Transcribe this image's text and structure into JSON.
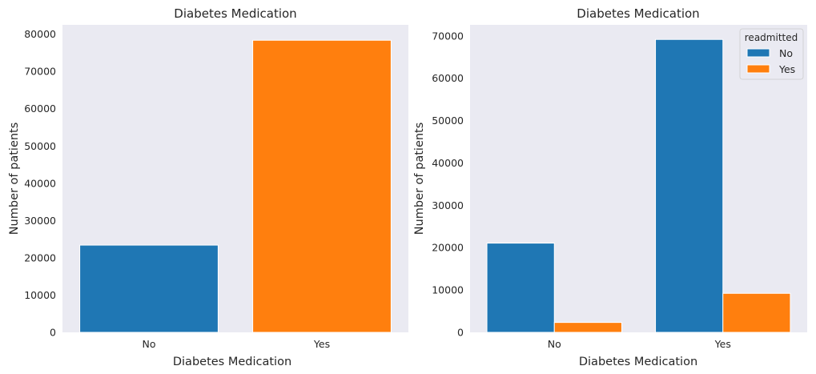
{
  "chart_data": [
    {
      "type": "bar",
      "title": "Diabetes Medication",
      "xlabel": "Diabetes Medication",
      "ylabel": "Number of patients",
      "categories": [
        "No",
        "Yes"
      ],
      "values": [
        23403,
        78363
      ],
      "ylim": [
        0,
        82500
      ],
      "yticks": [
        0,
        10000,
        20000,
        30000,
        40000,
        50000,
        60000,
        70000,
        80000
      ],
      "grid": false,
      "colors": [
        "#1f77b4",
        "#ff7f0e"
      ],
      "background": "#eaeaf2"
    },
    {
      "type": "bar",
      "title": "Diabetes Medication",
      "xlabel": "Diabetes Medication",
      "ylabel": "Number of patients",
      "categories": [
        "No",
        "Yes"
      ],
      "series": [
        {
          "name": "No",
          "values": [
            21065,
            69152
          ],
          "color": "#1f77b4"
        },
        {
          "name": "Yes",
          "values": [
            2338,
            9211
          ],
          "color": "#ff7f0e"
        }
      ],
      "ylim": [
        0,
        72600
      ],
      "yticks": [
        0,
        10000,
        20000,
        30000,
        40000,
        50000,
        60000,
        70000
      ],
      "legend": {
        "title": "readmitted",
        "position": "top-right"
      },
      "grid": false,
      "background": "#eaeaf2"
    }
  ]
}
